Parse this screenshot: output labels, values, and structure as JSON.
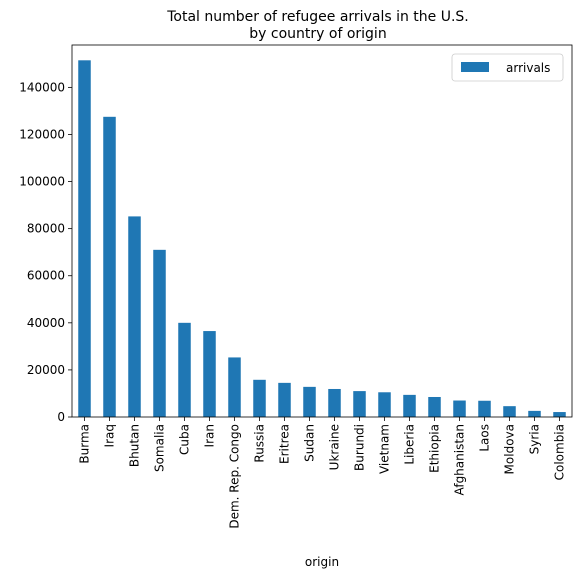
{
  "chart_data": {
    "type": "bar",
    "title_lines": [
      "Total number of refugee arrivals in the U.S.",
      "by country of origin"
    ],
    "xlabel": "origin",
    "ylabel": "",
    "legend": {
      "position": "top-right",
      "entries": [
        "arrivals"
      ]
    },
    "ylim": [
      0,
      158000
    ],
    "yticks": [
      0,
      20000,
      40000,
      60000,
      80000,
      100000,
      120000,
      140000
    ],
    "grid": false,
    "colors": {
      "bar": "#1f77b4"
    },
    "categories": [
      "Burma",
      "Iraq",
      "Bhutan",
      "Somalia",
      "Cuba",
      "Iran",
      "Dem. Rep. Congo",
      "Russia",
      "Eritrea",
      "Sudan",
      "Ukraine",
      "Burundi",
      "Vietnam",
      "Liberia",
      "Ethiopia",
      "Afghanistan",
      "Laos",
      "Moldova",
      "Syria",
      "Colombia"
    ],
    "series": [
      {
        "name": "arrivals",
        "values": [
          151500,
          127500,
          85200,
          71000,
          40000,
          36500,
          25300,
          15800,
          14500,
          12800,
          11900,
          11000,
          10500,
          9400,
          8500,
          7000,
          6900,
          4600,
          2600,
          2100
        ]
      }
    ]
  }
}
